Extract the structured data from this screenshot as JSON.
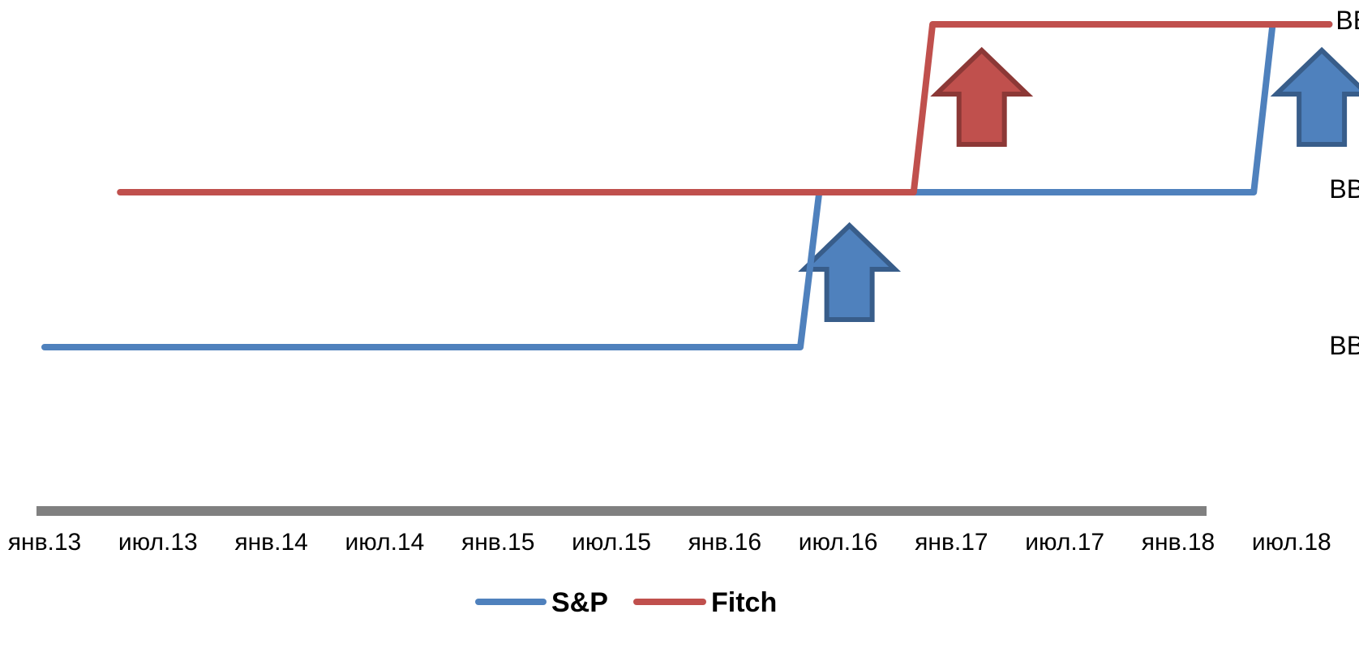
{
  "chart_data": {
    "type": "line",
    "x_labels": [
      "янв.13",
      "июл.13",
      "янв.14",
      "июл.14",
      "янв.15",
      "июл.15",
      "янв.16",
      "июл.16",
      "янв.17",
      "июл.17",
      "янв.18",
      "июл.18"
    ],
    "y_levels": [
      "BB",
      "BB+",
      "BBB-"
    ],
    "series": [
      {
        "name": "S&P",
        "color": "#4F81BD",
        "points": [
          {
            "x": "2013-01",
            "y": "BB"
          },
          {
            "x": "2016-05",
            "y": "BB"
          },
          {
            "x": "2016-06",
            "y": "BB+"
          },
          {
            "x": "2018-05",
            "y": "BB+"
          },
          {
            "x": "2018-06",
            "y": "BBB-"
          },
          {
            "x": "2018-09",
            "y": "BBB-"
          }
        ]
      },
      {
        "name": "Fitch",
        "color": "#C0504D",
        "points": [
          {
            "x": "2013-05",
            "y": "BB+"
          },
          {
            "x": "2016-11",
            "y": "BB+"
          },
          {
            "x": "2016-12",
            "y": "BBB-"
          },
          {
            "x": "2018-09",
            "y": "BBB-"
          }
        ]
      }
    ],
    "annotations": [
      {
        "type": "up-arrow",
        "at": "2016-07",
        "color": "#4F81BD",
        "border": "#385D8A"
      },
      {
        "type": "up-arrow",
        "at": "2017-02",
        "color": "#C0504D",
        "border": "#8C3836"
      },
      {
        "type": "up-arrow",
        "at": "2018-08",
        "color": "#4F81BD",
        "border": "#385D8A"
      }
    ],
    "axis_color": "#808080",
    "legend_position": "bottom"
  }
}
